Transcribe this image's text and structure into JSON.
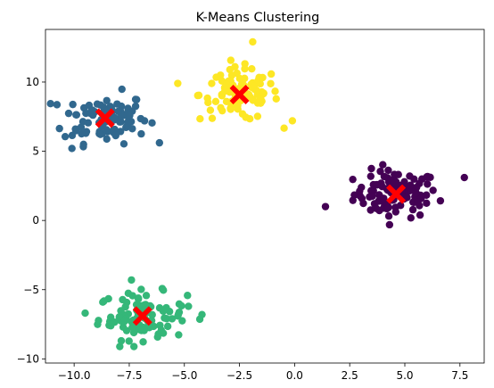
{
  "chart_data": {
    "type": "scatter",
    "title": "K-Means Clustering",
    "xlabel": "",
    "ylabel": "",
    "xlim": [
      -11.3,
      8.6
    ],
    "ylim": [
      -10.3,
      13.8
    ],
    "xticks": [
      -10.0,
      -7.5,
      -5.0,
      -2.5,
      0.0,
      2.5,
      5.0,
      7.5
    ],
    "xtick_labels": [
      "−10.0",
      "−7.5",
      "−5.0",
      "−2.5",
      "0.0",
      "2.5",
      "5.0",
      "7.5"
    ],
    "yticks": [
      -10,
      -5,
      0,
      5,
      10
    ],
    "ytick_labels": [
      "−10",
      "−5",
      "0",
      "5",
      "10"
    ],
    "grid": false,
    "legend": "none",
    "clusters": [
      {
        "color": "#440154",
        "center": {
          "x": 4.6,
          "y": 1.9,
          "spread_x": 0.95,
          "spread_y": 0.85
        },
        "count": 100
      },
      {
        "color": "#31688e",
        "center": {
          "x": -8.6,
          "y": 7.4,
          "spread_x": 0.95,
          "spread_y": 0.9
        },
        "count": 100
      },
      {
        "color": "#35b779",
        "center": {
          "x": -6.9,
          "y": -6.9,
          "spread_x": 1.0,
          "spread_y": 0.85
        },
        "count": 100
      },
      {
        "color": "#fde725",
        "center": {
          "x": -2.5,
          "y": 9.1,
          "spread_x": 0.9,
          "spread_y": 0.95
        },
        "count": 100
      }
    ],
    "centroids": {
      "color": "#ff0000",
      "marker": "X",
      "points": [
        {
          "x": 4.6,
          "y": 1.9
        },
        {
          "x": -8.6,
          "y": 7.4
        },
        {
          "x": -6.9,
          "y": -6.9
        },
        {
          "x": -2.5,
          "y": 9.1
        }
      ]
    },
    "outliers": [
      {
        "cluster": 0,
        "x": 1.4,
        "y": 1.0
      },
      {
        "cluster": 0,
        "x": 7.7,
        "y": 3.1
      },
      {
        "cluster": 1,
        "x": -10.1,
        "y": 5.2
      },
      {
        "cluster": 3,
        "x": -1.9,
        "y": 12.9
      },
      {
        "cluster": 3,
        "x": -0.1,
        "y": 7.2
      },
      {
        "cluster": 3,
        "x": -5.3,
        "y": 9.9
      },
      {
        "cluster": 2,
        "x": -7.4,
        "y": -4.3
      },
      {
        "cluster": 2,
        "x": -4.2,
        "y": -6.8
      }
    ]
  }
}
